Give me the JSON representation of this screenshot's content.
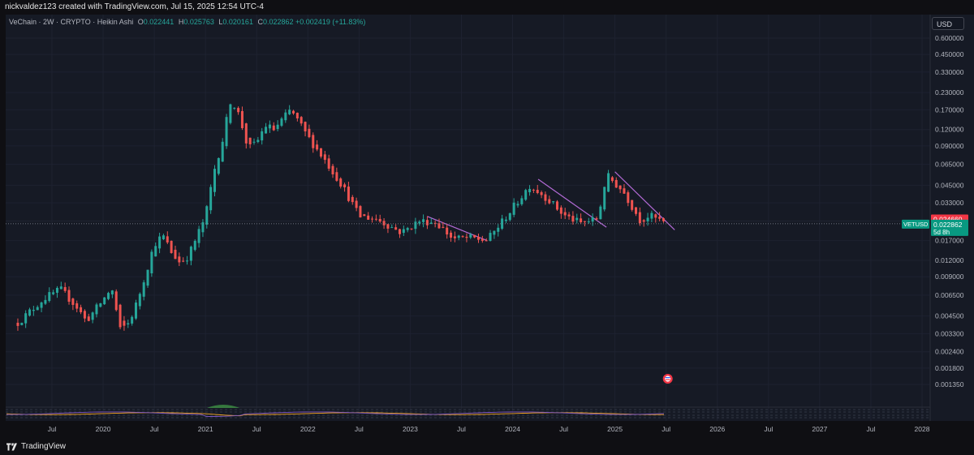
{
  "header": {
    "credit": "nickvaldez123 created with TradingView.com, Jul 15, 2025 12:54 UTC-4"
  },
  "legend": {
    "symbol": "VeChain · 2W · CRYPTO · Heikin Ashi",
    "o_label": "O",
    "o_value": "0.022441",
    "h_label": "H",
    "h_value": "0.025763",
    "l_label": "L",
    "l_value": "0.020161",
    "c_label": "C",
    "c_value": "0.022862",
    "change": "+0.002419 (+11.83%)"
  },
  "currency": "USD",
  "price_tags": {
    "ticker": "VETUSD",
    "upper": "0.024660",
    "current": "0.022862",
    "countdown": "5d 8h"
  },
  "footer": {
    "brand": "TradingView"
  },
  "colors": {
    "up": "#26a69a",
    "down": "#ef5350",
    "trendline": "#b36ad6",
    "tag_red": "#f23645",
    "tag_green": "#089981"
  },
  "chart_data": {
    "type": "candlestick",
    "scale": "log",
    "y_ticks": [
      0.6,
      0.45,
      0.33,
      0.23,
      0.17,
      0.12,
      0.09,
      0.065,
      0.045,
      0.033,
      0.024,
      0.017,
      0.012,
      0.009,
      0.0065,
      0.0045,
      0.0033,
      0.0024,
      0.0018,
      0.00135
    ],
    "y_tick_labels": [
      "0.600000",
      "0.450000",
      "0.330000",
      "0.230000",
      "0.170000",
      "0.120000",
      "0.090000",
      "0.065000",
      "0.045000",
      "0.033000",
      "",
      "0.017000",
      "0.012000",
      "0.009000",
      "0.006500",
      "0.004500",
      "0.003300",
      "0.002400",
      "0.001800",
      "0.001350"
    ],
    "x_ticks": [
      {
        "label": "Jul",
        "date": "2019-07"
      },
      {
        "label": "2020",
        "date": "2020-01"
      },
      {
        "label": "Jul",
        "date": "2020-07"
      },
      {
        "label": "2021",
        "date": "2021-01"
      },
      {
        "label": "Jul",
        "date": "2021-07"
      },
      {
        "label": "2022",
        "date": "2022-01"
      },
      {
        "label": "Jul",
        "date": "2022-07"
      },
      {
        "label": "2023",
        "date": "2023-01"
      },
      {
        "label": "Jul",
        "date": "2023-07"
      },
      {
        "label": "2024",
        "date": "2024-01"
      },
      {
        "label": "Jul",
        "date": "2024-07"
      },
      {
        "label": "2025",
        "date": "2025-01"
      },
      {
        "label": "Jul",
        "date": "2025-07"
      },
      {
        "label": "2026",
        "date": "2026-01"
      },
      {
        "label": "Jul",
        "date": "2026-07"
      },
      {
        "label": "2027",
        "date": "2027-01"
      },
      {
        "label": "Jul",
        "date": "2027-07"
      },
      {
        "label": "2028",
        "date": "2028-01"
      }
    ],
    "price_path": [
      [
        "2019-03",
        0.004
      ],
      [
        "2019-06",
        0.0061
      ],
      [
        "2019-08",
        0.0072
      ],
      [
        "2019-10",
        0.0052
      ],
      [
        "2019-11",
        0.0041
      ],
      [
        "2020-01",
        0.006
      ],
      [
        "2020-02",
        0.0074
      ],
      [
        "2020-03",
        0.0035
      ],
      [
        "2020-04",
        0.004
      ],
      [
        "2020-05",
        0.0058
      ],
      [
        "2020-07",
        0.016
      ],
      [
        "2020-08",
        0.0186
      ],
      [
        "2020-09",
        0.0138
      ],
      [
        "2020-10",
        0.0115
      ],
      [
        "2020-11",
        0.013
      ],
      [
        "2021-01",
        0.026
      ],
      [
        "2021-02",
        0.058
      ],
      [
        "2021-03",
        0.1
      ],
      [
        "2021-04",
        0.21
      ],
      [
        "2021-05",
        0.15
      ],
      [
        "2021-06",
        0.085
      ],
      [
        "2021-07",
        0.095
      ],
      [
        "2021-08",
        0.13
      ],
      [
        "2021-09",
        0.12
      ],
      [
        "2021-11",
        0.17
      ],
      [
        "2022-01",
        0.105
      ],
      [
        "2022-03",
        0.07
      ],
      [
        "2022-05",
        0.045
      ],
      [
        "2022-07",
        0.026
      ],
      [
        "2022-09",
        0.025
      ],
      [
        "2022-12",
        0.0195
      ],
      [
        "2023-02",
        0.024
      ],
      [
        "2023-04",
        0.0235
      ],
      [
        "2023-06",
        0.0175
      ],
      [
        "2023-08",
        0.0178
      ],
      [
        "2023-10",
        0.017
      ],
      [
        "2024-01",
        0.03
      ],
      [
        "2024-03",
        0.045
      ],
      [
        "2024-05",
        0.036
      ],
      [
        "2024-07",
        0.0265
      ],
      [
        "2024-09",
        0.023
      ],
      [
        "2024-11",
        0.025
      ],
      [
        "2024-12",
        0.054
      ],
      [
        "2025-02",
        0.04
      ],
      [
        "2025-04",
        0.024
      ],
      [
        "2025-05",
        0.0265
      ],
      [
        "2025-07",
        0.0229
      ]
    ],
    "trendlines": [
      {
        "from": [
          "2023-03",
          0.026
        ],
        "to": [
          "2023-10",
          0.017
        ]
      },
      {
        "from": [
          "2024-04",
          0.05
        ],
        "to": [
          "2024-12",
          0.0215
        ]
      },
      {
        "from": [
          "2025-01",
          0.057
        ],
        "to": [
          "2025-08",
          0.0205
        ]
      }
    ],
    "current_price": 0.022862,
    "event_marker_date": "2025-07"
  }
}
